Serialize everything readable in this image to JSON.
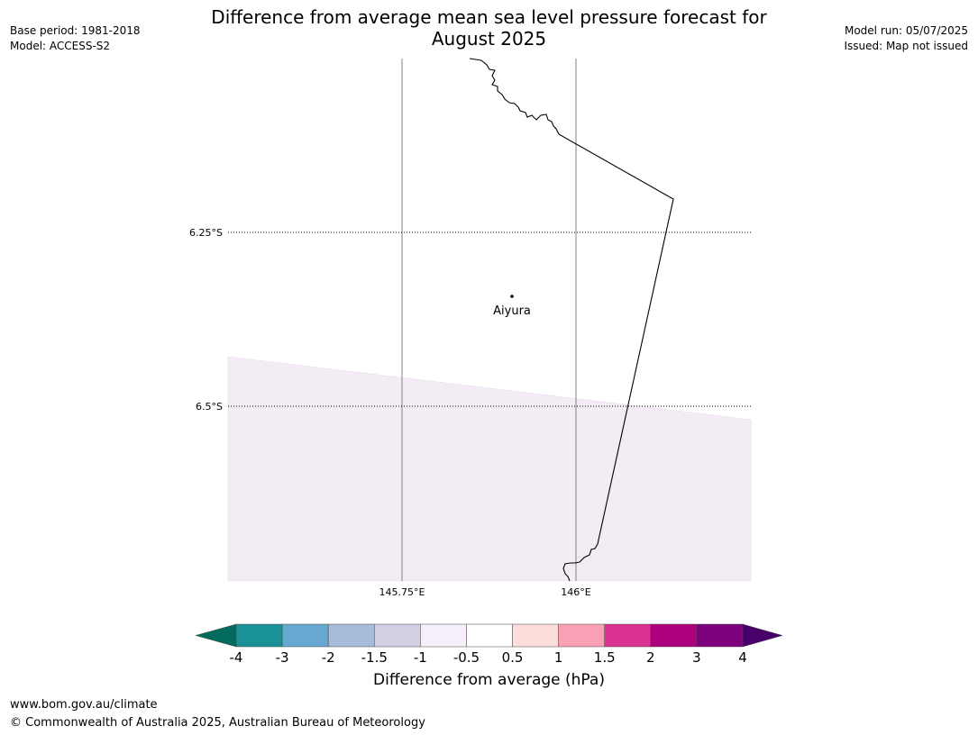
{
  "header": {
    "title_line1": "Difference from average mean sea level pressure forecast for",
    "title_line2": "August 2025",
    "base_period": "Base period: 1981-2018",
    "model": "Model: ACCESS-S2",
    "model_run": "Model run: 05/07/2025",
    "issued": "Issued: Map not issued"
  },
  "map": {
    "lat_labels": [
      "6.25°S",
      "6.5°S"
    ],
    "lon_labels": [
      "145.75°E",
      "146°E"
    ],
    "place": {
      "name": "Aiyura"
    },
    "fill_class": "-1 to -0.5 hPa",
    "colors": {
      "coast": "#000000",
      "fill": "#f3ecf5",
      "grid": "#808080"
    }
  },
  "colorbar": {
    "label": "Difference from average (hPa)",
    "ticks": [
      "-4",
      "-3",
      "-2",
      "-1.5",
      "-1",
      "-0.5",
      "0.5",
      "1",
      "1.5",
      "2",
      "3",
      "4"
    ],
    "colors": [
      "#1a9196",
      "#67a8d0",
      "#a7bcdb",
      "#d2cfe4",
      "#f6eef8",
      "#ffffff",
      "#fddedd",
      "#f9a0b5",
      "#da3292",
      "#ac007d",
      "#7d007d"
    ],
    "low_color": "#036a5e",
    "high_color": "#4a006b"
  },
  "footer": {
    "url": "www.bom.gov.au/climate",
    "copyright": "© Commonwealth of Australia 2025, Australian Bureau of Meteorology"
  }
}
